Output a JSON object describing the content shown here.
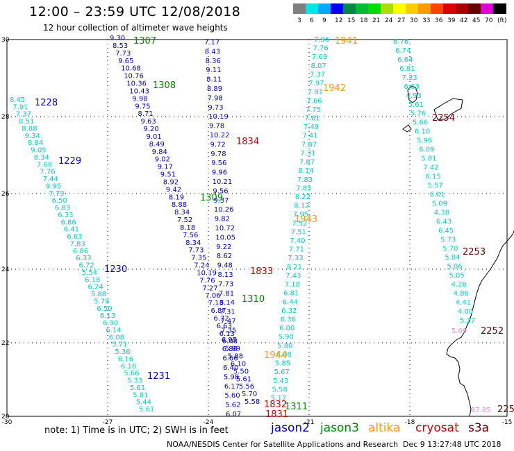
{
  "title": "12:00 – 23:59 UTC 12/08/2018",
  "subtitle": "12 hour collection of altimeter wave heights",
  "color_scale": {
    "colors": [
      "#7f7f7f",
      "#00e5e5",
      "#00a8ff",
      "#0000ee",
      "#008844",
      "#00bb33",
      "#00dd00",
      "#aadd00",
      "#ffff00",
      "#ffcc00",
      "#ff9900",
      "#ff4400",
      "#dd0000",
      "#aa0000",
      "#660000",
      "#dd00dd",
      "#000000"
    ],
    "labels": [
      "3",
      "6",
      "9",
      "12",
      "15",
      "18",
      "21",
      "24",
      "27",
      "30",
      "33",
      "36",
      "39",
      "42",
      "45",
      "70",
      "(ft)"
    ]
  },
  "axes": {
    "x_ticks": [
      "-30",
      "-27",
      "-24",
      "-21",
      "-18",
      "-15"
    ],
    "y_ticks": [
      "30",
      "28",
      "26",
      "24",
      "22",
      "20"
    ]
  },
  "sat_colors": {
    "jason2": "#0000cc",
    "jason3": "#008800",
    "altika": "#ff9900",
    "cryosat": "#cc0000",
    "s3a": "#660000",
    "cyan": "#00cccc",
    "pink": "#ee88dd"
  },
  "tracks": [
    {
      "sat": "cyan",
      "values": [
        "8.45",
        "7.91",
        "7.37",
        "8.51",
        "8.88",
        "9.34",
        "8.84",
        "9.05",
        "8.34",
        "7.68",
        "7.76",
        "7.44",
        "9.95",
        "7.79",
        "6.50",
        "6.83",
        "6.33",
        "6.86",
        "6.41",
        "6.63",
        "7.83",
        "6.86",
        "6.33",
        "6.72",
        "5.54",
        "6.18",
        "6.24",
        "5.88",
        "5.79",
        "6.50",
        "6.13",
        "6.90",
        "6.14",
        "6.08",
        "5.71",
        "5.36",
        "6.16",
        "6.18",
        "5.66",
        "5.33",
        "5.61",
        "5.81",
        "5.44",
        "5.61"
      ]
    },
    {
      "sat": "jason2",
      "values": [
        "9.30",
        "8.53",
        "7.73",
        "9.65",
        "10.68",
        "10.76",
        "10.36",
        "10.43",
        "9.98",
        "9.75",
        "8.71",
        "9.63",
        "9.20",
        "9.01",
        "8.49",
        "9.84",
        "9.02",
        "9.17",
        "9.51",
        "8.92",
        "9.42",
        "8.19",
        "8.88",
        "8.34",
        "7.52",
        "8.18",
        "7.56",
        "8.34",
        "7.73",
        "7.35",
        "7.24",
        "10.19",
        "7.76",
        "7.27",
        "7.06",
        "7.13",
        "6.87",
        "6.72",
        "6.63",
        "6.13",
        "6.08",
        "5.99",
        "5.88",
        "6.10",
        "5.50",
        "5.61",
        "5.56",
        "5.70",
        "5.58"
      ]
    },
    {
      "sat": "jason2",
      "values": [
        "7.17",
        "8.43",
        "8.36",
        "9.11",
        "8.11",
        "8.89",
        "7.98",
        "9.73",
        "10.19",
        "9.78",
        "10.22",
        "9.72",
        "9.78",
        "9.56",
        "9.96",
        "10.21",
        "9.56",
        "9.37",
        "10.26",
        "9.82",
        "10.72",
        "10.05",
        "9.22",
        "8.62",
        "9.48",
        "8.13",
        "7.73",
        "7.81",
        "8.14",
        "7.31",
        "7.47",
        "7.35",
        "6.95",
        "6.86",
        "6.66",
        "6.40",
        "5.98",
        "6.17",
        "5.60",
        "5.62",
        "6.07"
      ]
    },
    {
      "sat": "cyan",
      "values": [
        "7.96",
        "7.76",
        "7.69",
        "8.07",
        "7.37",
        "7.97",
        "7.91",
        "7.66",
        "7.75",
        "7.61",
        "7.49",
        "7.41",
        "7.87",
        "7.31",
        "7.87",
        "8.14",
        "7.83",
        "7.85",
        "8.22",
        "8.12",
        "7.95",
        "7.52",
        "7.51",
        "7.40",
        "7.71",
        "7.33",
        "8.21",
        "7.43",
        "7.18",
        "6.81",
        "6.44",
        "6.32",
        "6.36",
        "6.00",
        "5.90",
        "5.80",
        "6.08",
        "5.85",
        "5.67",
        "5.43",
        "5.58",
        "5.17"
      ]
    },
    {
      "sat": "cyan",
      "values": [
        "6.76",
        "6.74",
        "6.64",
        "6.81",
        "7.33",
        "6.63",
        "4.93",
        "5.61",
        "5.76",
        "5.66",
        "6.10",
        "5.96",
        "6.09",
        "5.81",
        "7.42",
        "6.15",
        "5.57",
        "6.01",
        "5.09",
        "4.38",
        "6.43",
        "6.45",
        "5.73",
        "5.70",
        "5.84",
        "5.06",
        "5.05",
        "4.26",
        "4.86",
        "4.41",
        "4.00",
        "5.37"
      ]
    }
  ],
  "pink_values": [
    "5.69",
    "87.85"
  ],
  "labels": [
    {
      "text": "1307",
      "sat": "jason3"
    },
    {
      "text": "1308",
      "sat": "jason3"
    },
    {
      "text": "1309",
      "sat": "jason3"
    },
    {
      "text": "1310",
      "sat": "jason3"
    },
    {
      "text": "1311",
      "sat": "jason3"
    },
    {
      "text": "1228",
      "sat": "jason2"
    },
    {
      "text": "1229",
      "sat": "jason2"
    },
    {
      "text": "1230",
      "sat": "jason2"
    },
    {
      "text": "1231",
      "sat": "jason2"
    },
    {
      "text": "1834",
      "sat": "cryosat"
    },
    {
      "text": "1833",
      "sat": "cryosat"
    },
    {
      "text": "1832",
      "sat": "cryosat"
    },
    {
      "text": "1831",
      "sat": "cryosat"
    },
    {
      "text": "1941",
      "sat": "altika"
    },
    {
      "text": "1942",
      "sat": "altika"
    },
    {
      "text": "1943",
      "sat": "altika"
    },
    {
      "text": "1944",
      "sat": "altika"
    },
    {
      "text": "2254",
      "sat": "s3a"
    },
    {
      "text": "2253",
      "sat": "s3a"
    },
    {
      "text": "2252",
      "sat": "s3a"
    },
    {
      "text": "225",
      "sat": "s3a"
    }
  ],
  "note": "note:  1) Time is in UTC;  2) SWH is in feet",
  "legend": {
    "jason2": "jason2",
    "jason3": "jason3",
    "altika": "altika",
    "cryosat": "cryosat",
    "s3a": "s3a"
  },
  "footer": "NOAA/NESDIS Center for Satellite Applications and Research",
  "timestamp": "Dec  9 13:27:48 UTC 2018"
}
